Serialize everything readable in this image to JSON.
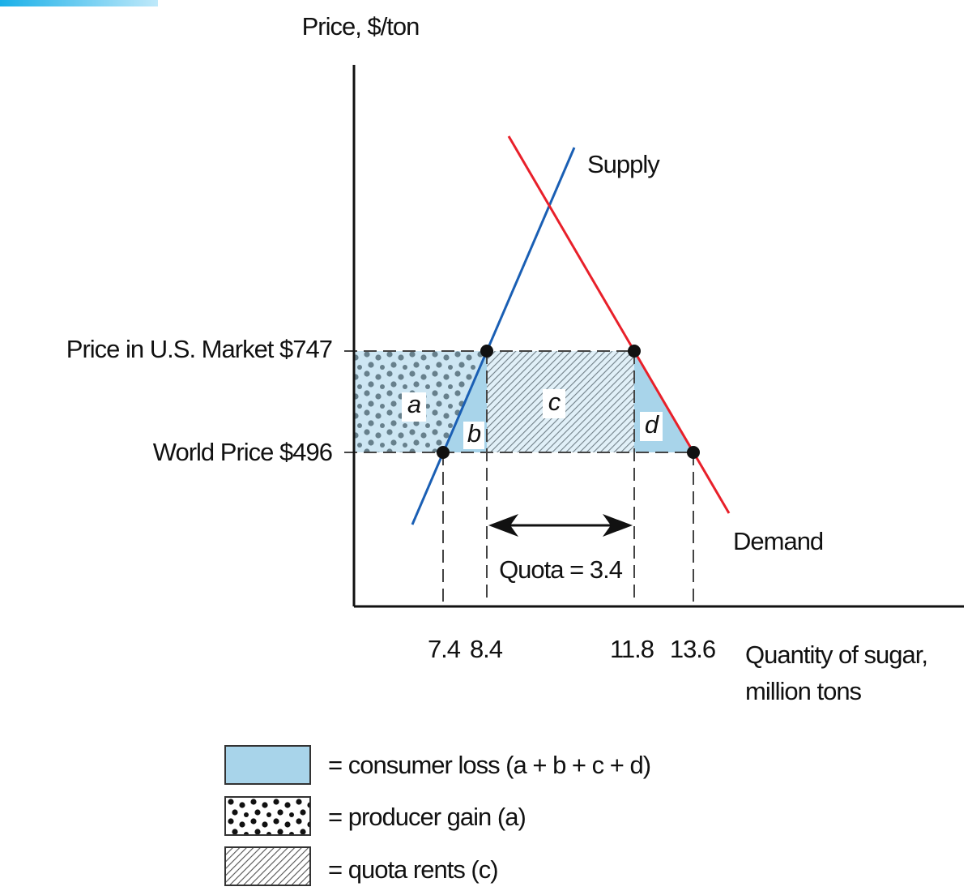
{
  "axis": {
    "y_label": "Price, $/ton",
    "x_label_lines": [
      "Quantity of sugar,",
      "million tons"
    ]
  },
  "curves": {
    "supply": "Supply",
    "demand": "Demand"
  },
  "prices": [
    "Price in U.S. Market $747",
    "World Price $496"
  ],
  "quantities": [
    "7.4",
    "8.4",
    "11.8",
    "13.6"
  ],
  "areas": [
    "a",
    "b",
    "c",
    "d"
  ],
  "quota": "Quota = 3.4",
  "legend": [
    "= consumer loss (a + b + c + d)",
    "= producer gain (a)",
    "= quota rents (c)"
  ]
}
